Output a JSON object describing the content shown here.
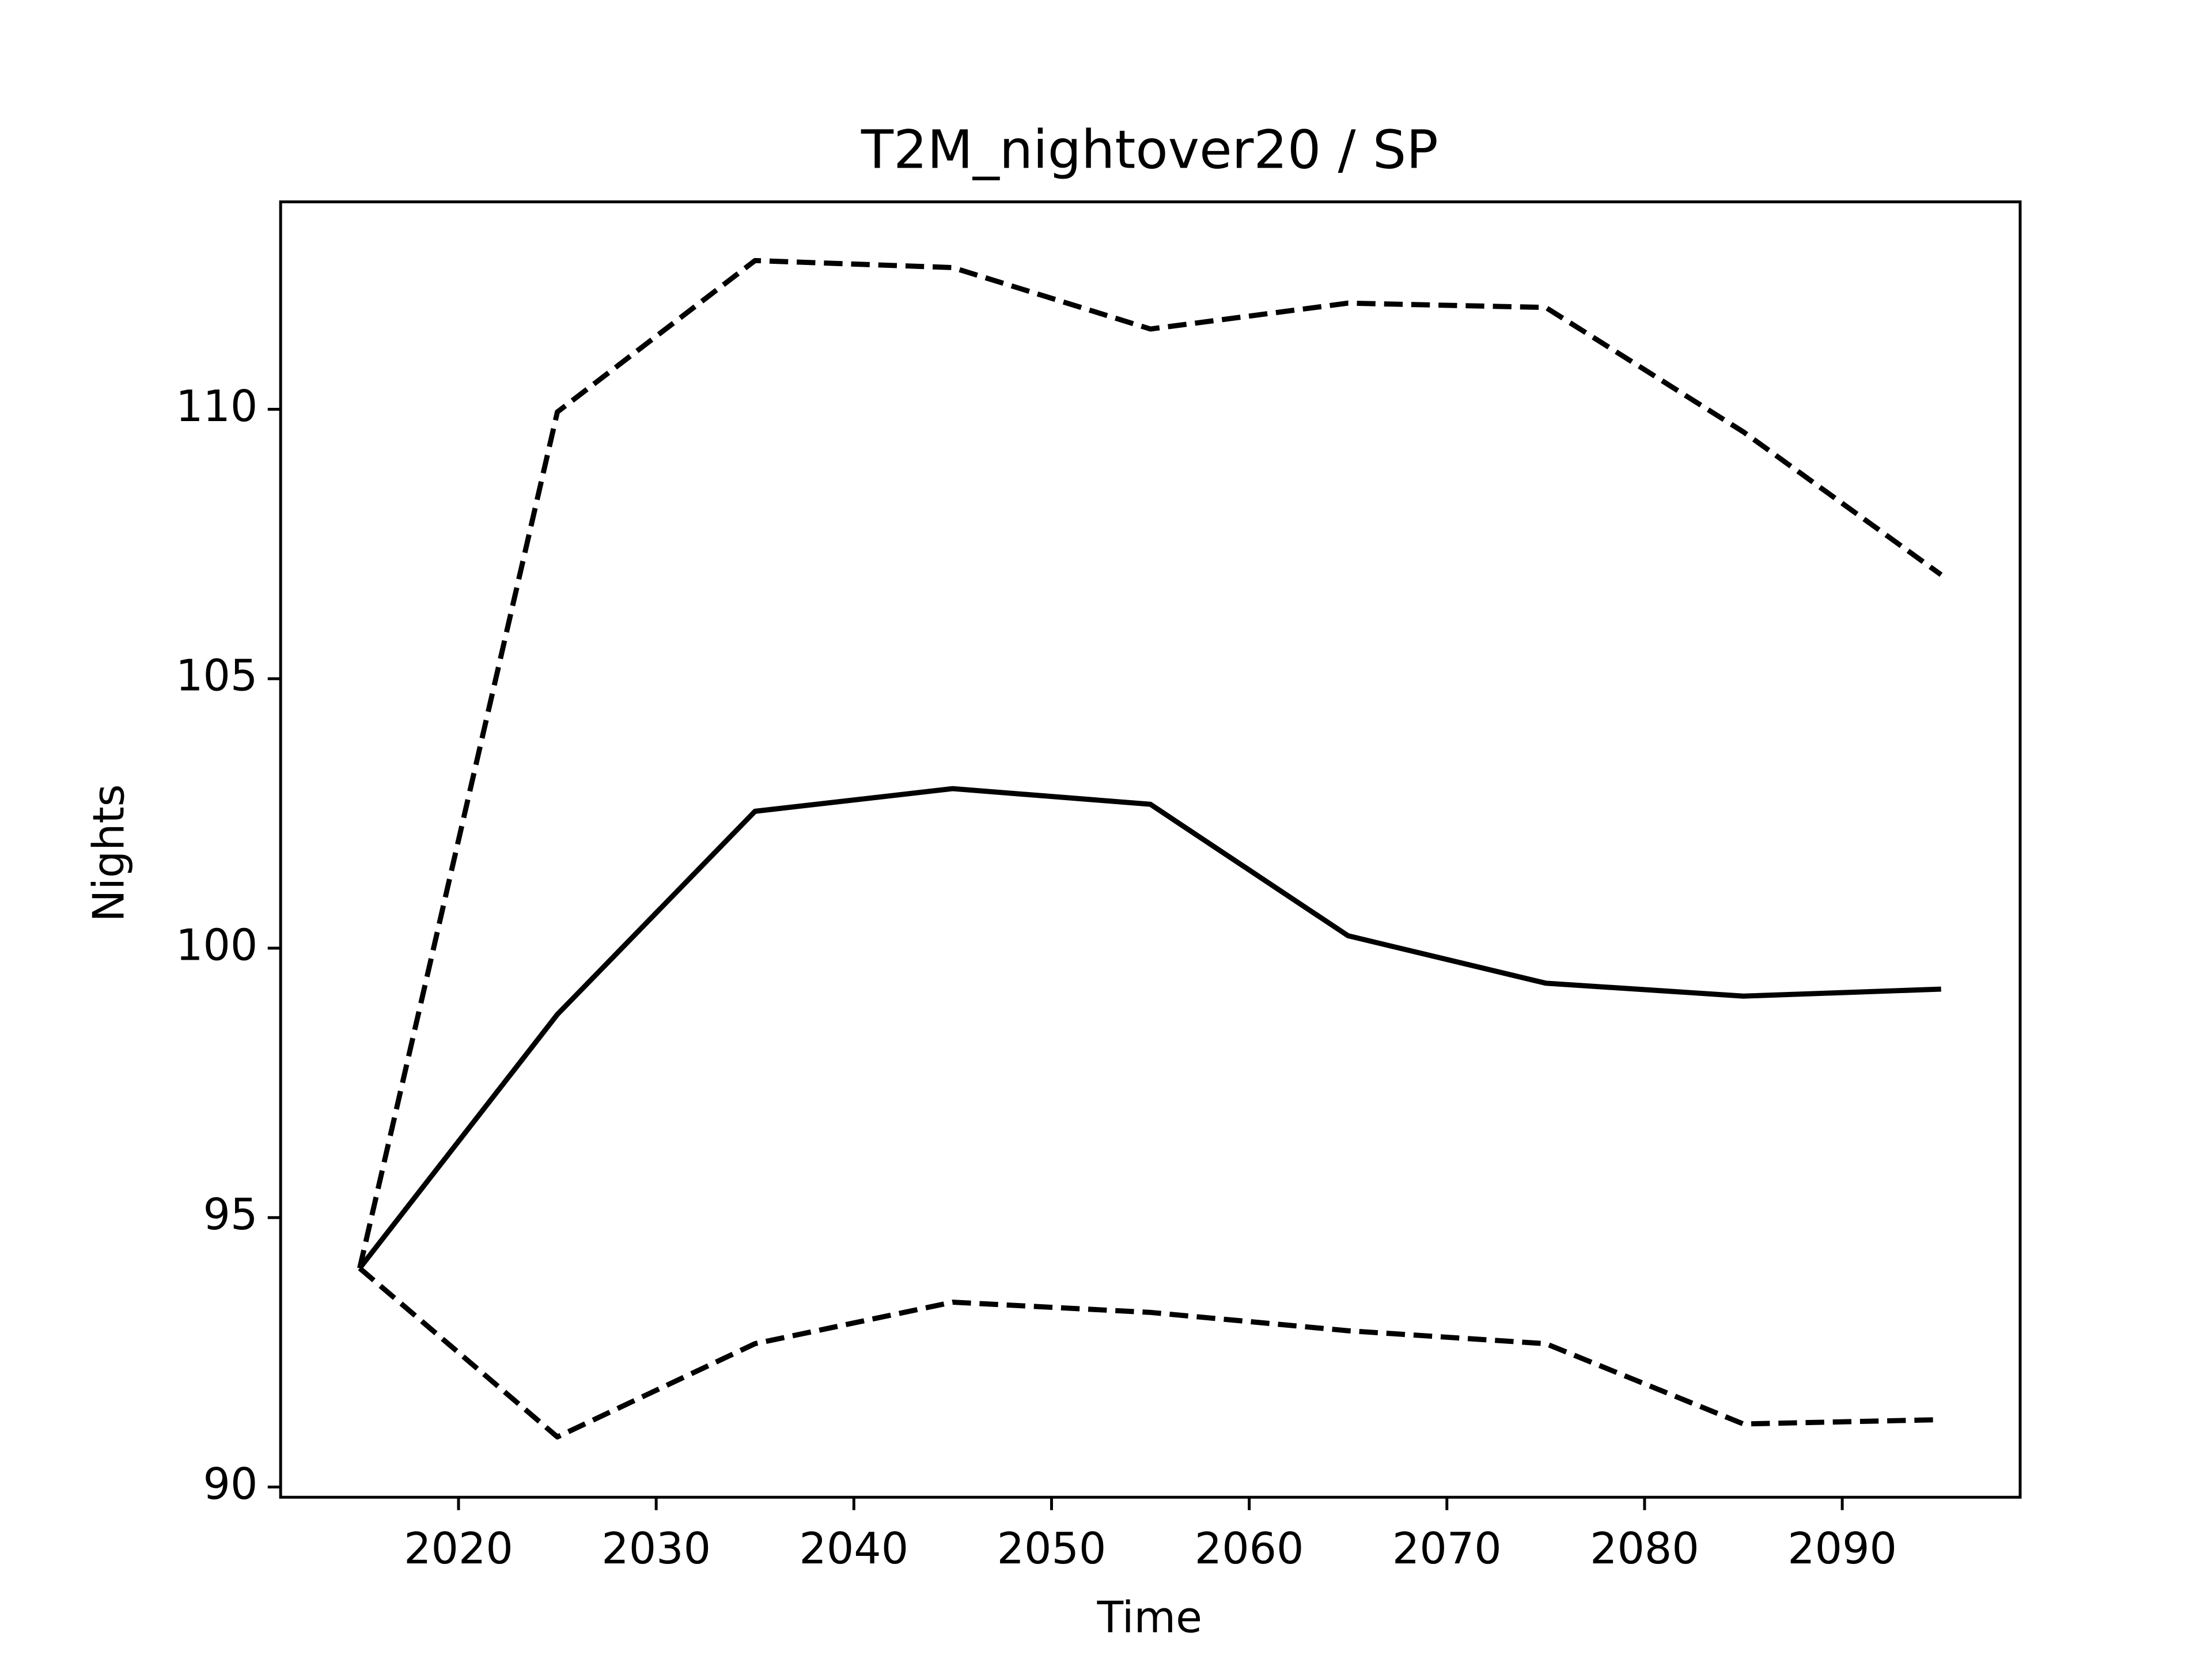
{
  "chart_data": {
    "type": "line",
    "title": "T2M_nightover20 / SP",
    "xlabel": "Time",
    "ylabel": "Nights",
    "x": [
      2015,
      2025,
      2035,
      2045,
      2055,
      2065,
      2075,
      2085,
      2095
    ],
    "series": [
      {
        "color": "#000000",
        "dashed": false,
        "values": [
          94.06,
          98.77,
          102.54,
          102.96,
          102.67,
          100.23,
          99.35,
          99.11,
          99.24
        ]
      },
      {
        "color": "#000000",
        "dashed": true,
        "values": [
          94.06,
          109.95,
          112.76,
          112.63,
          111.49,
          111.97,
          111.89,
          109.58,
          106.93
        ]
      },
      {
        "color": "#000000",
        "dashed": true,
        "values": [
          94.06,
          90.93,
          92.66,
          93.43,
          93.24,
          92.9,
          92.66,
          91.17,
          91.25
        ]
      }
    ],
    "xlim": [
      2011,
      2099
    ],
    "xticks": [
      2020,
      2030,
      2040,
      2050,
      2060,
      2070,
      2080,
      2090
    ],
    "ylim": [
      89.81,
      113.85
    ],
    "yticks": [
      90,
      95,
      100,
      105,
      110
    ],
    "grid": false
  }
}
